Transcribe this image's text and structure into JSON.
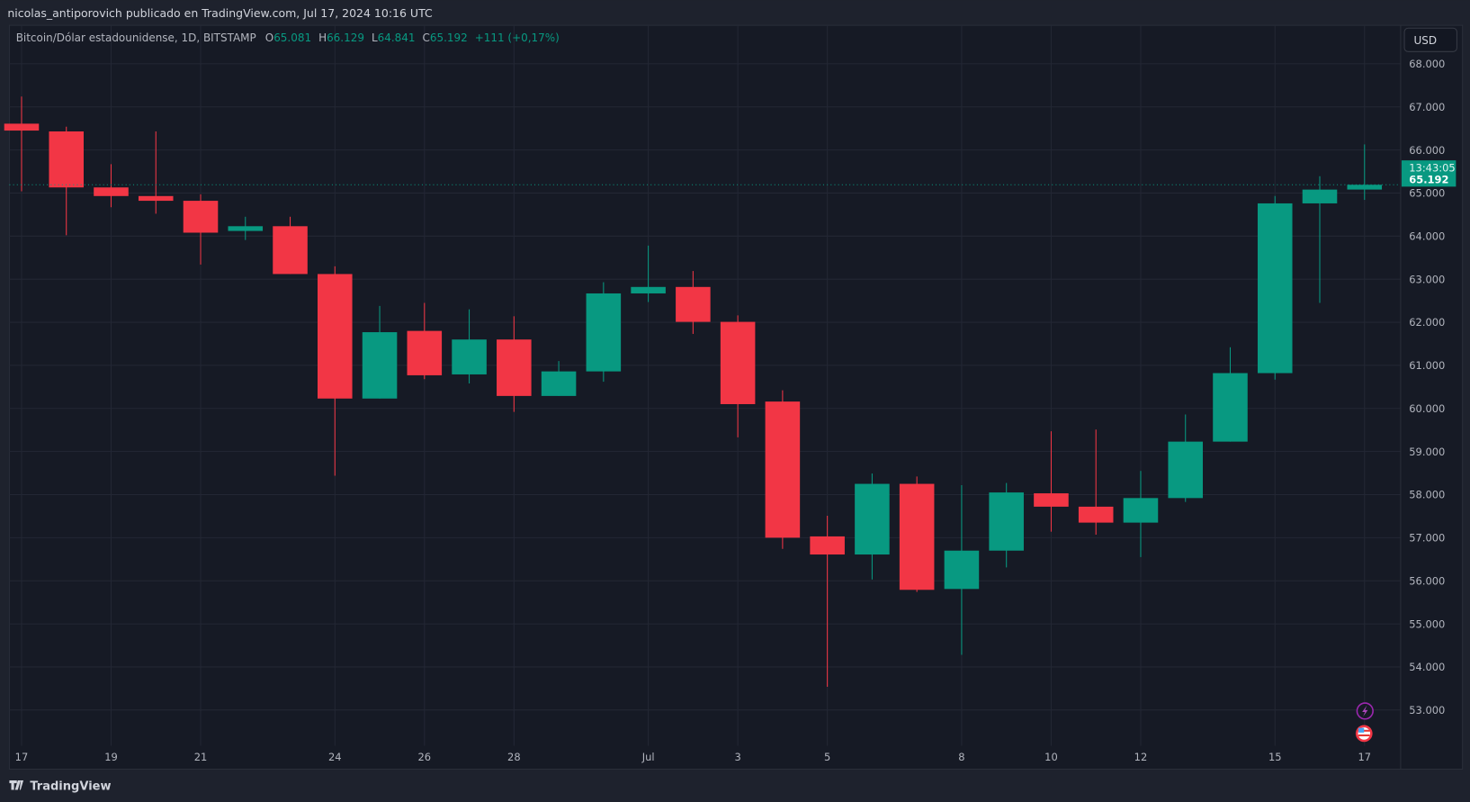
{
  "header": {
    "publisher": "nicolas_antiporovich publicado en TradingView.com, Jul 17, 2024 10:16 UTC"
  },
  "legend": {
    "symbol": "Bitcoin/Dólar estadounidense, 1D, BITSTAMP",
    "open_label": "O",
    "open": "65.081",
    "high_label": "H",
    "high": "66.129",
    "low_label": "L",
    "low": "64.841",
    "close_label": "C",
    "close": "65.192",
    "change": "+111 (+0,17%)"
  },
  "currency_button": "USD",
  "last_price": {
    "price": "65.192",
    "countdown": "13:43:05"
  },
  "footer": {
    "brand": "TradingView"
  },
  "icons": [
    "lightning-event-icon",
    "us-flag-event-icon"
  ],
  "colors": {
    "up": "#089981",
    "down": "#f23645",
    "background": "#161a25",
    "grid": "#232734",
    "text": "#b2b5be"
  },
  "chart_data": {
    "type": "candlestick",
    "title": "",
    "xlabel": "",
    "ylabel": "",
    "ylim": [
      52000,
      68500
    ],
    "grid": true,
    "y_ticks": [
      "68.000",
      "67.000",
      "66.000",
      "65.000",
      "64.000",
      "63.000",
      "62.000",
      "61.000",
      "60.000",
      "59.000",
      "58.000",
      "57.000",
      "56.000",
      "55.000",
      "54.000",
      "53.000"
    ],
    "x_ticks": [
      {
        "day": 0,
        "label": "17"
      },
      {
        "day": 2,
        "label": "19"
      },
      {
        "day": 4,
        "label": "21"
      },
      {
        "day": 7,
        "label": "24"
      },
      {
        "day": 9,
        "label": "26"
      },
      {
        "day": 11,
        "label": "28"
      },
      {
        "day": 14,
        "label": "Jul"
      },
      {
        "day": 16,
        "label": "3"
      },
      {
        "day": 18,
        "label": "5"
      },
      {
        "day": 21,
        "label": "8"
      },
      {
        "day": 23,
        "label": "10"
      },
      {
        "day": 25,
        "label": "12"
      },
      {
        "day": 28,
        "label": "15"
      },
      {
        "day": 30,
        "label": "17"
      }
    ],
    "candles": [
      {
        "date": "2024-06-17",
        "o": 66610,
        "h": 67240,
        "l": 65040,
        "c": 66450
      },
      {
        "date": "2024-06-18",
        "o": 66430,
        "h": 66540,
        "l": 64020,
        "c": 65130
      },
      {
        "date": "2024-06-19",
        "o": 65130,
        "h": 65670,
        "l": 64670,
        "c": 64930
      },
      {
        "date": "2024-06-20",
        "o": 64930,
        "h": 66430,
        "l": 64520,
        "c": 64820
      },
      {
        "date": "2024-06-21",
        "o": 64820,
        "h": 64970,
        "l": 63340,
        "c": 64080
      },
      {
        "date": "2024-06-22",
        "o": 64120,
        "h": 64450,
        "l": 63910,
        "c": 64230
      },
      {
        "date": "2024-06-23",
        "o": 64230,
        "h": 64450,
        "l": 63120,
        "c": 63120
      },
      {
        "date": "2024-06-24",
        "o": 63120,
        "h": 63300,
        "l": 58440,
        "c": 60230
      },
      {
        "date": "2024-06-25",
        "o": 60230,
        "h": 62380,
        "l": 60230,
        "c": 61770
      },
      {
        "date": "2024-06-26",
        "o": 61800,
        "h": 62450,
        "l": 60680,
        "c": 60770
      },
      {
        "date": "2024-06-27",
        "o": 60790,
        "h": 62300,
        "l": 60580,
        "c": 61600
      },
      {
        "date": "2024-06-28",
        "o": 61600,
        "h": 62140,
        "l": 59920,
        "c": 60290
      },
      {
        "date": "2024-06-29",
        "o": 60290,
        "h": 61100,
        "l": 60290,
        "c": 60860
      },
      {
        "date": "2024-06-30",
        "o": 60860,
        "h": 62930,
        "l": 60620,
        "c": 62670
      },
      {
        "date": "2024-07-01",
        "o": 62670,
        "h": 63780,
        "l": 62470,
        "c": 62820
      },
      {
        "date": "2024-07-02",
        "o": 62820,
        "h": 63190,
        "l": 61730,
        "c": 62010
      },
      {
        "date": "2024-07-03",
        "o": 62010,
        "h": 62160,
        "l": 59330,
        "c": 60100
      },
      {
        "date": "2024-07-04",
        "o": 60160,
        "h": 60420,
        "l": 56740,
        "c": 57000
      },
      {
        "date": "2024-07-05",
        "o": 57030,
        "h": 57510,
        "l": 53540,
        "c": 56610
      },
      {
        "date": "2024-07-06",
        "o": 56610,
        "h": 58490,
        "l": 56030,
        "c": 58250
      },
      {
        "date": "2024-07-07",
        "o": 58250,
        "h": 58420,
        "l": 55740,
        "c": 55790
      },
      {
        "date": "2024-07-08",
        "o": 55810,
        "h": 58220,
        "l": 54280,
        "c": 56700
      },
      {
        "date": "2024-07-09",
        "o": 56700,
        "h": 58270,
        "l": 56310,
        "c": 58050
      },
      {
        "date": "2024-07-10",
        "o": 58030,
        "h": 59470,
        "l": 57140,
        "c": 57720
      },
      {
        "date": "2024-07-11",
        "o": 57720,
        "h": 59510,
        "l": 57070,
        "c": 57350
      },
      {
        "date": "2024-07-12",
        "o": 57350,
        "h": 58550,
        "l": 56550,
        "c": 57920
      },
      {
        "date": "2024-07-13",
        "o": 57920,
        "h": 59860,
        "l": 57830,
        "c": 59230
      },
      {
        "date": "2024-07-14",
        "o": 59230,
        "h": 61420,
        "l": 59230,
        "c": 60820
      },
      {
        "date": "2024-07-15",
        "o": 60820,
        "h": 64930,
        "l": 60670,
        "c": 64760
      },
      {
        "date": "2024-07-16",
        "o": 64760,
        "h": 65390,
        "l": 62450,
        "c": 65080
      },
      {
        "date": "2024-07-17",
        "o": 65081,
        "h": 66129,
        "l": 64841,
        "c": 65192
      }
    ]
  }
}
